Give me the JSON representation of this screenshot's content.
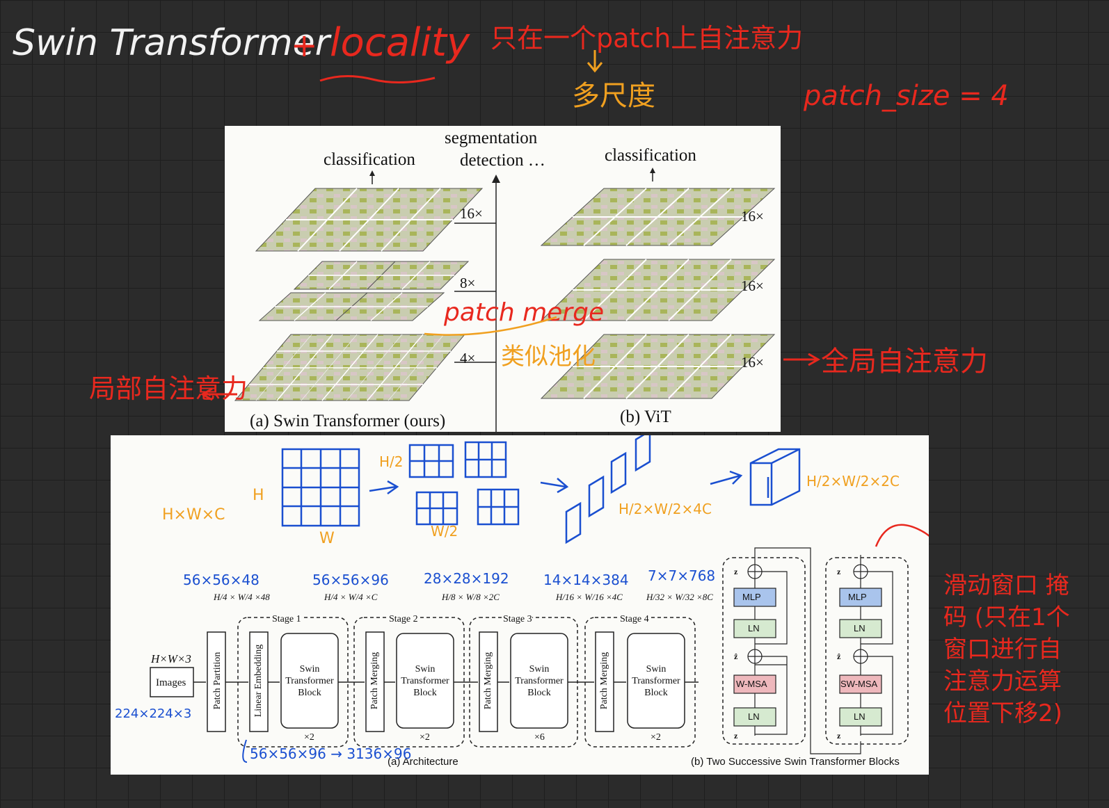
{
  "notes": {
    "title": "Swin Transformer",
    "plus": "+",
    "locality": "locality",
    "top_note": "只在一个patch上自注意力",
    "top_sub": "多尺度",
    "patch_size": "patch_size = 4",
    "patch_merge": "patch merge",
    "pooling_like": "类似池化",
    "global_attn": "全局自注意力",
    "local_attn": "局部自注意力",
    "hwc": "H×W×C",
    "h_mark": "H",
    "w_mark": "W",
    "half_h": "H/2",
    "half_w": "W/2",
    "dims_4c": "H/2×W/2×4C",
    "dims_2c": "H/2×W/2×2C",
    "dim1": "56×56×48",
    "dim2": "56×56×96",
    "dim3": "28×28×192",
    "dim4": "14×14×384",
    "dim5": "7×7×768",
    "input_dims": "224×224×3",
    "merge_dims": "56×56×96 → 3136×96",
    "shift_note": "滑动窗口 掩码 (只在1个窗口进行自注意力运算 位置下移2)"
  },
  "fig1": {
    "seg_line1": "segmentation",
    "seg_line2": "detection …",
    "cls_left": "classification",
    "cls_right": "classification",
    "s16": "16×",
    "s8": "8×",
    "s4": "4×",
    "v16a": "16×",
    "v16b": "16×",
    "v16c": "16×",
    "cap_a": "(a) Swin Transformer (ours)",
    "cap_b": "(b) ViT"
  },
  "fig2": {
    "in_dims": "H×W×3",
    "images": "Images",
    "patch_partition": "Patch Partition",
    "linear_embedding": "Linear Embedding",
    "patch_merging": "Patch Merging",
    "swin1": "Swin",
    "swin2": "Transformer",
    "swin3": "Block",
    "stages": [
      {
        "name": "Stage 1",
        "rep": "×2",
        "dim": "H/4 × W/4 ×48"
      },
      {
        "name": "Stage 2",
        "rep": "×2",
        "dim": "H/4 × W/4 ×C"
      },
      {
        "name": "Stage 3",
        "rep": "×6",
        "dim": "H/8 × W/8 ×2C"
      },
      {
        "name": "Stage 4",
        "rep": "×2",
        "dim": "H/16 × W/16 ×4C"
      }
    ],
    "dim_last": "H/32 × W/32 ×8C",
    "cap_a": "(a) Architecture",
    "cap_b": "(b) Two Successive Swin Transformer Blocks",
    "mlp": "MLP",
    "ln": "LN",
    "wmsa": "W-MSA",
    "swmsa": "SW-MSA",
    "z_l": "z",
    "z_hat": "ẑ"
  },
  "colors": {
    "red_ink": "#e8281e",
    "orange_ink": "#f0a020",
    "blue_ink": "#1a4fd0",
    "block_blue": "#a9c4ec",
    "block_green": "#d6ead0",
    "block_pink": "#eeb8bc"
  }
}
